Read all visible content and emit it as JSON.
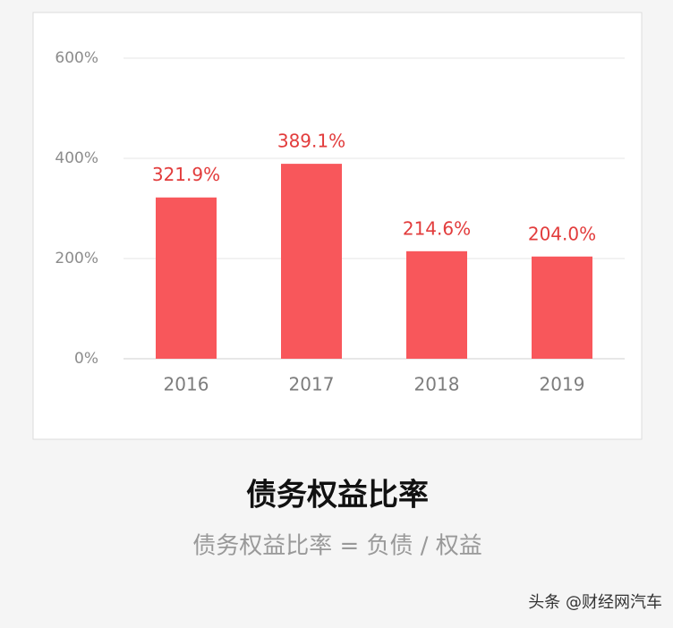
{
  "chart_data": {
    "type": "bar",
    "title": "债务权益比率",
    "subtitle": "债务权益比率 = 负债 / 权益",
    "watermark": "头条 @财经网汽车",
    "categories": [
      "2016",
      "2017",
      "2018",
      "2019"
    ],
    "values": [
      321.9,
      389.1,
      214.6,
      204.0
    ],
    "value_labels": [
      "321.9%",
      "389.1%",
      "214.6%",
      "204.0%"
    ],
    "color": "#f8575b",
    "ylim": [
      0,
      600
    ],
    "yticks": [
      {
        "value": 0,
        "label": "0%"
      },
      {
        "value": 200,
        "label": "200%"
      },
      {
        "value": 400,
        "label": "400%"
      },
      {
        "value": 600,
        "label": "600%"
      }
    ],
    "grid": true
  }
}
